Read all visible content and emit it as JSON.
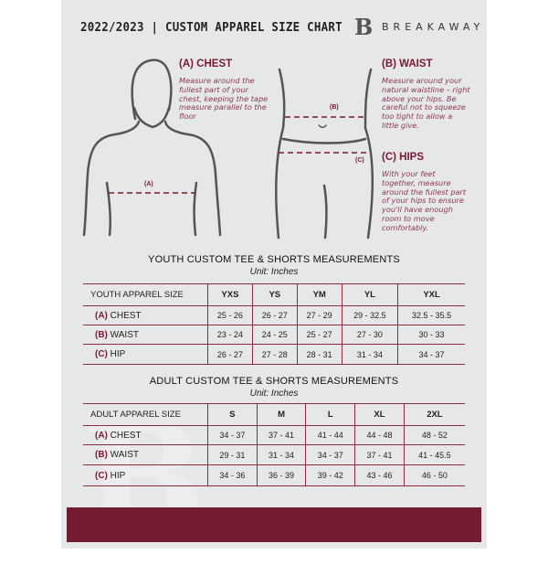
{
  "header": {
    "title": "2022/2023  |  CUSTOM APPAREL SIZE CHART",
    "brand": "BREAKAWAY",
    "logo_letter": "B"
  },
  "guides": {
    "chest": {
      "title": "(A) CHEST",
      "text": "Measure around the fullest part of your chest, keeping the tape measure parallel to the floor",
      "marker": "(A)"
    },
    "waist": {
      "title": "(B) WAIST",
      "text": "Measure around your natural waistline – right above your hips. Be careful not to squeeze too tight to allow a little give.",
      "marker": "(B)"
    },
    "hips": {
      "title": "(C) HIPS",
      "text": "With your feet together, measure around the fullest part of your hips to ensure you'll have enough room to move comfortably.",
      "marker": "(C)"
    }
  },
  "youth": {
    "title": "YOUTH CUSTOM TEE & SHORTS MEASUREMENTS",
    "unit": "Unit: Inches",
    "header": [
      "YOUTH APPAREL SIZE",
      "YXS",
      "YS",
      "YM",
      "YL",
      "YXL"
    ],
    "rows": [
      {
        "code": "(A)",
        "name": "CHEST",
        "values": [
          "25 - 26",
          "26 - 27",
          "27 - 29",
          "29 - 32.5",
          "32.5 - 35.5"
        ]
      },
      {
        "code": "(B)",
        "name": "WAIST",
        "values": [
          "23 - 24",
          "24 - 25",
          "25 - 27",
          "27 - 30",
          "30 - 33"
        ]
      },
      {
        "code": "(C)",
        "name": "HIP",
        "values": [
          "26 - 27",
          "27 - 28",
          "28 - 31",
          "31 - 34",
          "34 - 37"
        ]
      }
    ]
  },
  "adult": {
    "title": "ADULT CUSTOM TEE & SHORTS MEASUREMENTS",
    "unit": "Unit: Inches",
    "header": [
      "ADULT APPAREL SIZE",
      "S",
      "M",
      "L",
      "XL",
      "2XL"
    ],
    "rows": [
      {
        "code": "(A)",
        "name": "CHEST",
        "values": [
          "34 - 37",
          "37 - 41",
          "41 - 44",
          "44 - 48",
          "48 - 52"
        ]
      },
      {
        "code": "(B)",
        "name": "WAIST",
        "values": [
          "29 - 31",
          "31 - 34",
          "34 - 37",
          "37 - 41",
          "41 - 45.5"
        ]
      },
      {
        "code": "(C)",
        "name": "HIP",
        "values": [
          "34 - 36",
          "36 - 39",
          "39 - 42",
          "43 - 46",
          "46 - 50"
        ]
      }
    ]
  },
  "colors": {
    "accent": "#7a1a30",
    "background": "#e6e7e9",
    "footer": "#731b30"
  }
}
